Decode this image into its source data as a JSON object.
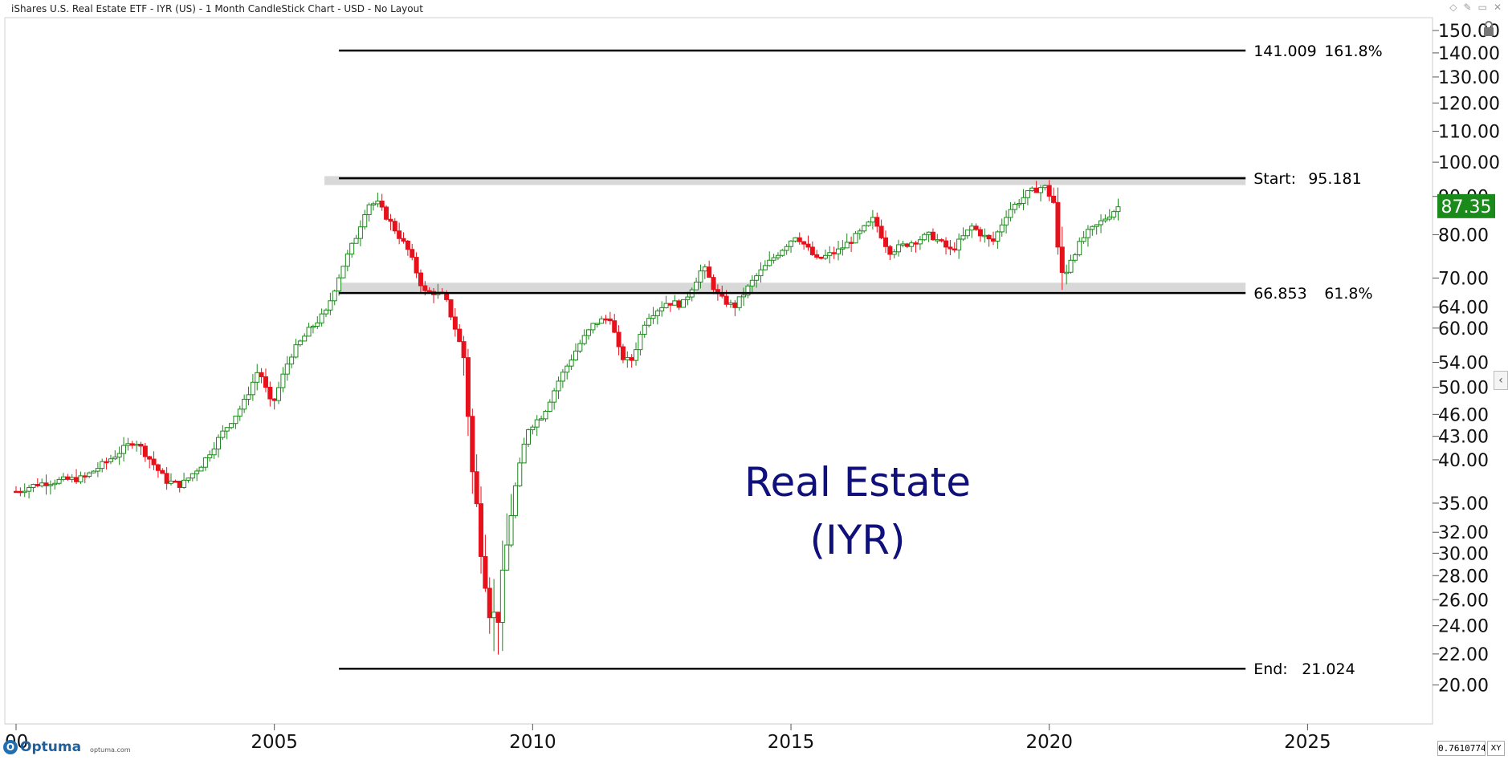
{
  "window": {
    "title": "iShares U.S. Real Estate ETF - IYR (US) - 1 Month CandleStick Chart - USD - No Layout",
    "lock_icon": "lock-icon",
    "collapse_icon": "chevron-left-icon"
  },
  "overlay": {
    "line1": "Real Estate",
    "line2": "(IYR)"
  },
  "current_price": {
    "label": "87.35",
    "value": 87.35,
    "color": "#1a8a1a"
  },
  "footer": {
    "brand": "Optuma",
    "url": "optuma.com",
    "scale_value": "0.7610774",
    "xy_label": "XY"
  },
  "colors": {
    "up": "#1a8a1a",
    "down": "#e8101a",
    "band": "#d8d8d8",
    "text_accent": "#10107a"
  },
  "chart_data": {
    "type": "candlestick",
    "scale": "log",
    "ylim": [
      18.5,
      153
    ],
    "xlim": [
      2000.0,
      2028.6
    ],
    "y_ticks": [
      "150.00",
      "140.00",
      "130.00",
      "120.00",
      "110.00",
      "100.00",
      "90.00",
      "80.00",
      "70.00",
      "64.00",
      "60.00",
      "54.00",
      "50.00",
      "46.00",
      "43.00",
      "40.00",
      "35.00",
      "32.00",
      "30.00",
      "28.00",
      "26.00",
      "24.00",
      "22.00",
      "20.00"
    ],
    "x_ticks": [
      "00",
      "2005",
      "2010",
      "2015",
      "2020",
      "2025"
    ],
    "x_tick_values": [
      2000,
      2005,
      2010,
      2015,
      2020,
      2025
    ],
    "fib_levels": [
      {
        "price": 141.009,
        "label": "141.009",
        "ratio": "161.8%",
        "start": 2006.25
      },
      {
        "price": 95.181,
        "label": "Start:",
        "value_text": "95.181",
        "ratio": "",
        "start": 2006.25,
        "band": [
          93.2,
          95.8
        ]
      },
      {
        "price": 66.853,
        "label": "66.853",
        "ratio": "61.8%",
        "start": 2006.25,
        "band": [
          66.9,
          69.0
        ]
      },
      {
        "price": 21.024,
        "label": "End:",
        "value_text": "21.024",
        "ratio": "",
        "start": 2006.25
      }
    ],
    "fib_end_x": 2023.8,
    "price_anchors": [
      [
        2000.0,
        36.3
      ],
      [
        2000.4,
        37.1
      ],
      [
        2000.8,
        37.5
      ],
      [
        2001.3,
        37.8
      ],
      [
        2001.8,
        40.0
      ],
      [
        2002.3,
        42.5
      ],
      [
        2002.6,
        40.0
      ],
      [
        2002.9,
        37.5
      ],
      [
        2003.2,
        37.0
      ],
      [
        2003.6,
        39.5
      ],
      [
        2004.0,
        43.5
      ],
      [
        2004.4,
        47.5
      ],
      [
        2004.7,
        53.0
      ],
      [
        2004.95,
        47.0
      ],
      [
        2005.3,
        55.0
      ],
      [
        2005.7,
        60.0
      ],
      [
        2006.0,
        63.0
      ],
      [
        2006.3,
        72.0
      ],
      [
        2006.6,
        80.0
      ],
      [
        2006.8,
        88.0
      ],
      [
        2007.0,
        88.0
      ],
      [
        2007.3,
        82.0
      ],
      [
        2007.6,
        76.0
      ],
      [
        2007.9,
        67.0
      ],
      [
        2008.1,
        67.0
      ],
      [
        2008.3,
        66.0
      ],
      [
        2008.5,
        60.0
      ],
      [
        2008.7,
        54.0
      ],
      [
        2008.8,
        40.0
      ],
      [
        2009.0,
        31.0
      ],
      [
        2009.2,
        24.5
      ],
      [
        2009.35,
        25.0
      ],
      [
        2009.6,
        35.0
      ],
      [
        2009.9,
        44.0
      ],
      [
        2010.2,
        46.0
      ],
      [
        2010.5,
        51.0
      ],
      [
        2010.9,
        57.0
      ],
      [
        2011.2,
        61.0
      ],
      [
        2011.5,
        62.0
      ],
      [
        2011.7,
        55.0
      ],
      [
        2011.9,
        54.0
      ],
      [
        2012.2,
        62.0
      ],
      [
        2012.6,
        65.0
      ],
      [
        2012.9,
        64.5
      ],
      [
        2013.3,
        72.5
      ],
      [
        2013.6,
        66.0
      ],
      [
        2013.9,
        64.0
      ],
      [
        2014.3,
        70.0
      ],
      [
        2014.7,
        75.0
      ],
      [
        2015.1,
        80.0
      ],
      [
        2015.5,
        74.0
      ],
      [
        2015.9,
        76.0
      ],
      [
        2016.3,
        80.0
      ],
      [
        2016.6,
        84.0
      ],
      [
        2016.9,
        76.0
      ],
      [
        2017.3,
        78.0
      ],
      [
        2017.7,
        80.0
      ],
      [
        2018.1,
        76.0
      ],
      [
        2018.5,
        82.0
      ],
      [
        2018.9,
        78.0
      ],
      [
        2019.2,
        86.0
      ],
      [
        2019.6,
        91.0
      ],
      [
        2019.9,
        93.0
      ],
      [
        2020.1,
        88.0
      ],
      [
        2020.2,
        70.0
      ],
      [
        2020.4,
        74.0
      ],
      [
        2020.7,
        80.0
      ],
      [
        2020.9,
        82.0
      ],
      [
        2021.15,
        85.0
      ],
      [
        2021.35,
        87.35
      ]
    ]
  }
}
